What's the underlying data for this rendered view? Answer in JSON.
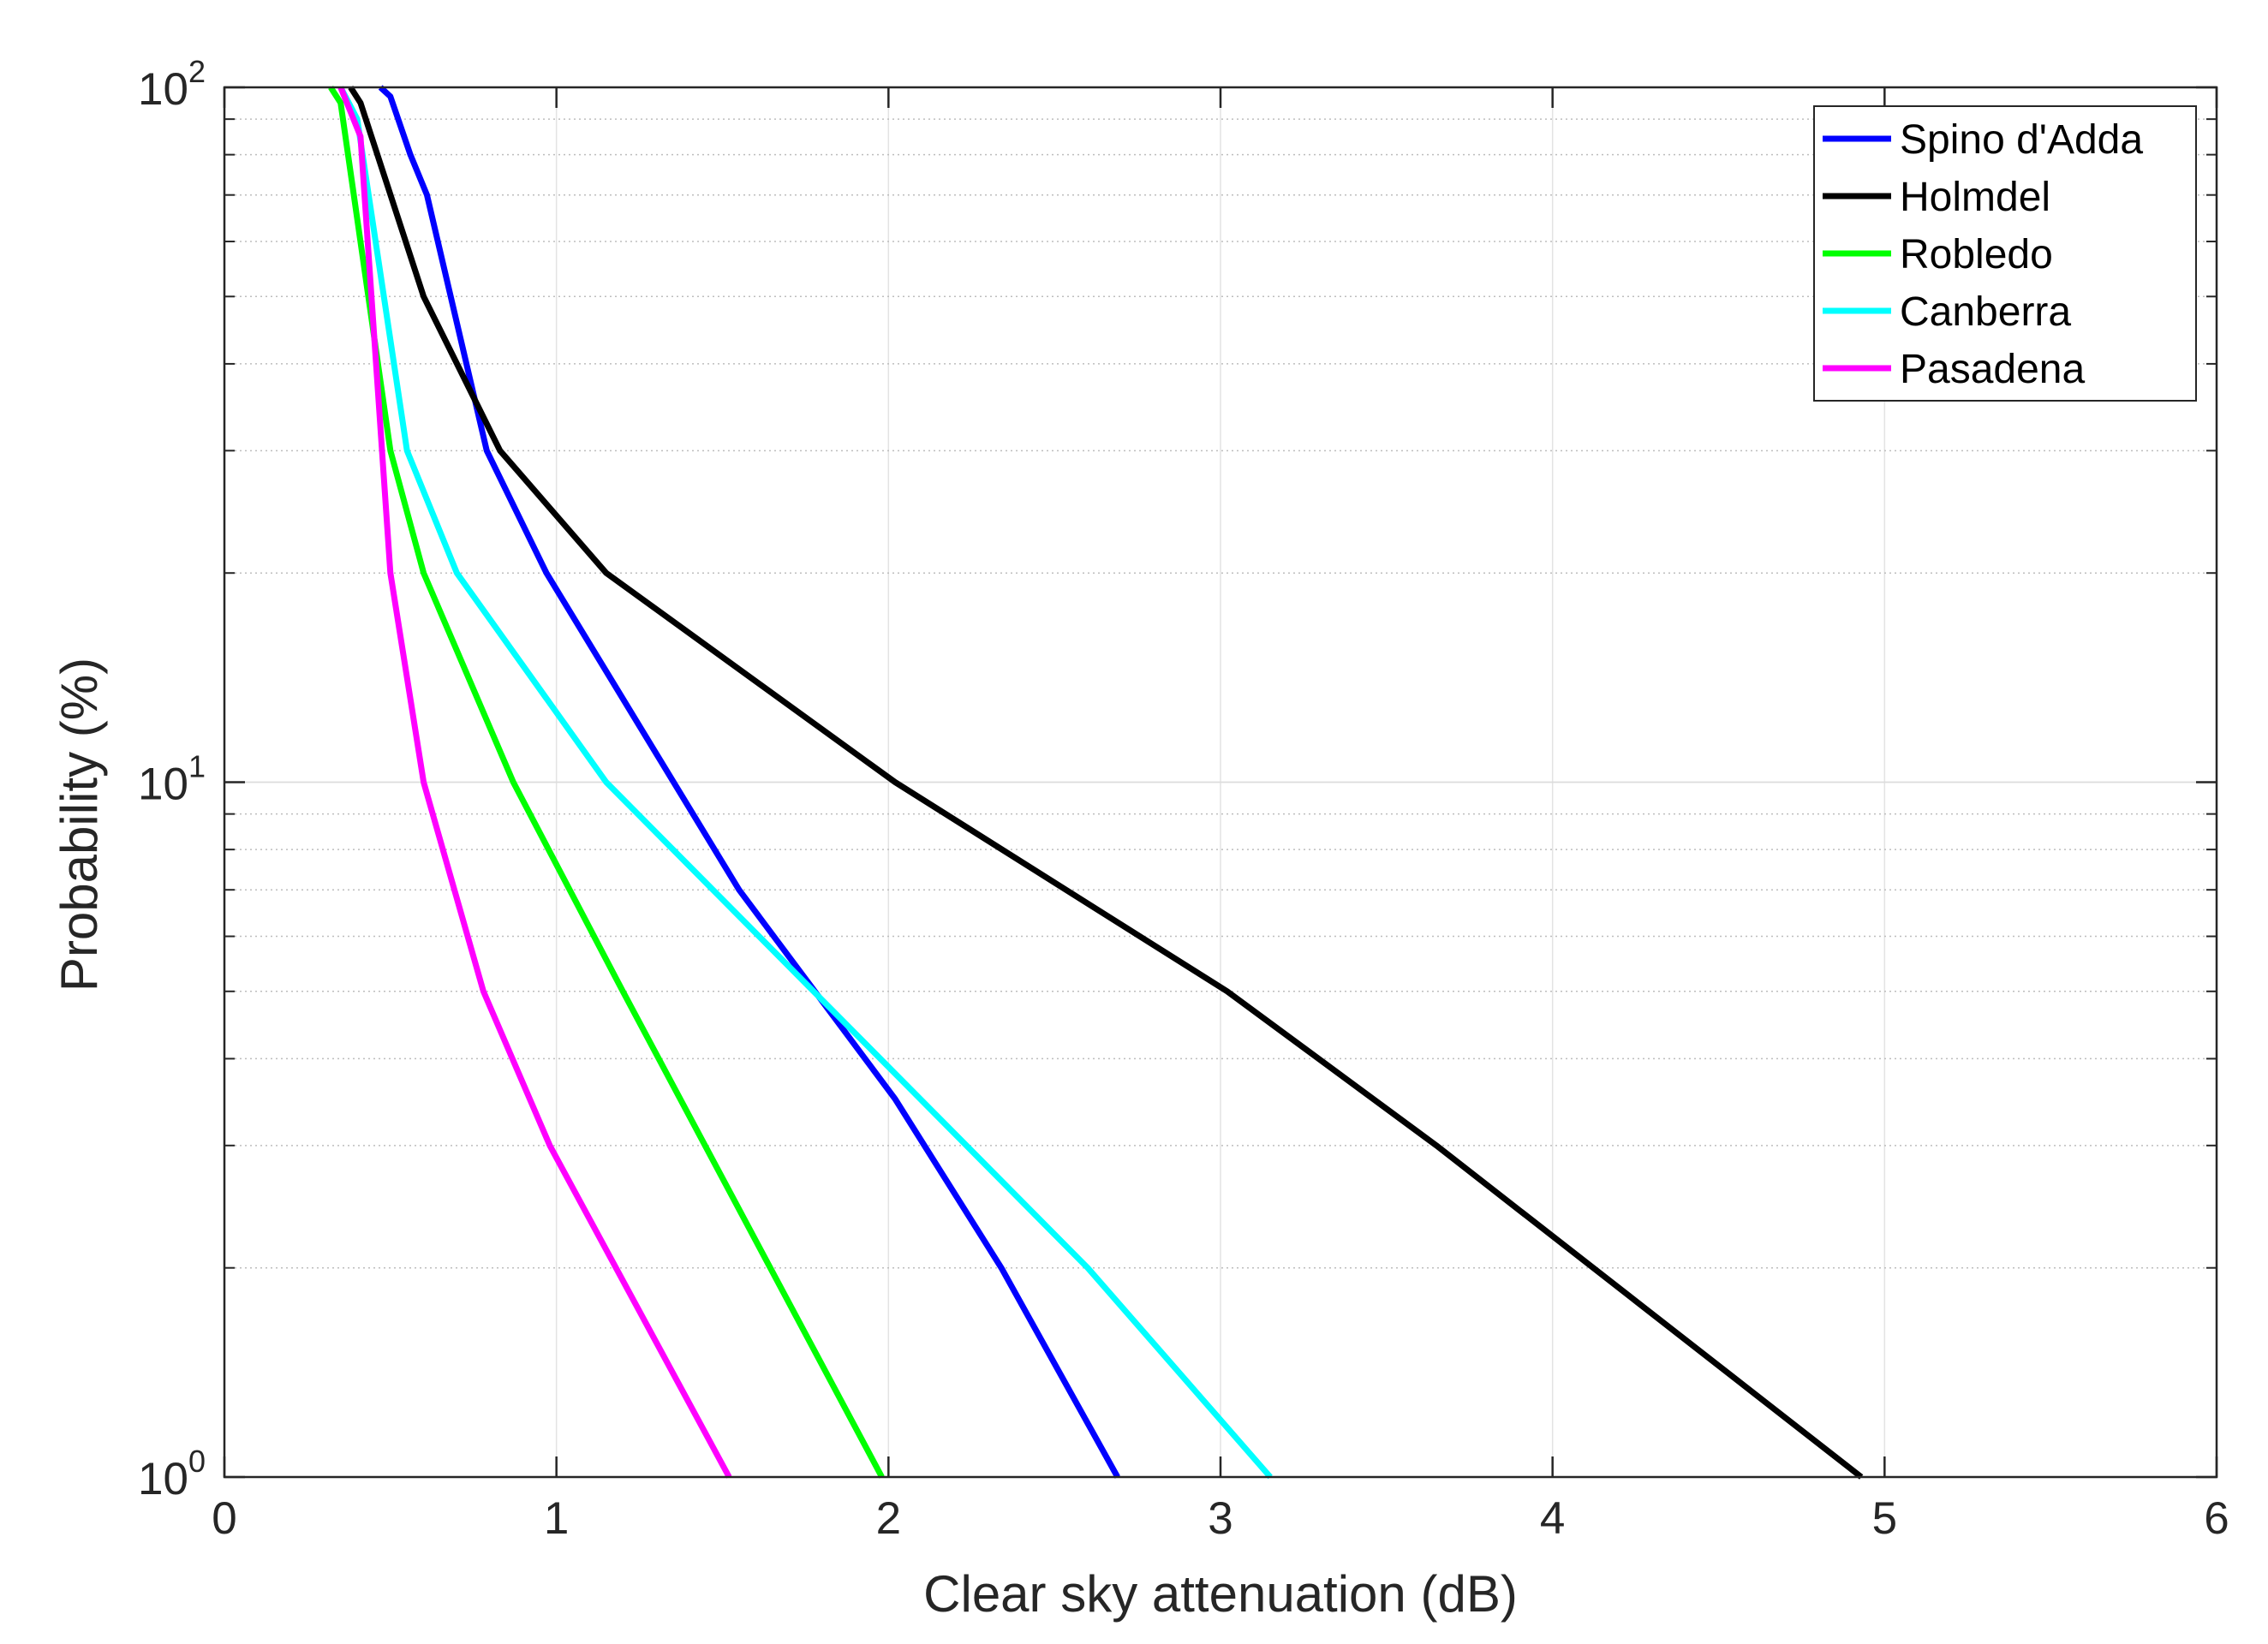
{
  "chart_data": {
    "type": "line",
    "title": "",
    "xlabel": "Clear sky attenuation (dB)",
    "ylabel": "Probability (%)",
    "xlim": [
      0,
      6
    ],
    "ylim": [
      1,
      100
    ],
    "yscale": "log",
    "grid": true,
    "legend_position": "top-right",
    "x_ticks": [
      0,
      1,
      2,
      3,
      4,
      5,
      6
    ],
    "x_tick_labels": [
      "0",
      "1",
      "2",
      "3",
      "4",
      "5",
      "6"
    ],
    "y_ticks": [
      1,
      10,
      100
    ],
    "y_tick_labels": [
      {
        "base": "10",
        "exp": "0"
      },
      {
        "base": "10",
        "exp": "1"
      },
      {
        "base": "10",
        "exp": "2"
      }
    ],
    "series": [
      {
        "name": "Spino d'Adda",
        "color": "#0000ff",
        "x": [
          0.47,
          0.5,
          0.56,
          0.61,
          0.79,
          0.97,
          1.55,
          2.02,
          2.34,
          2.69
        ],
        "y": [
          100,
          97,
          80,
          70,
          30,
          20,
          7,
          3.5,
          2,
          1
        ]
      },
      {
        "name": "Holmdel",
        "color": "#000000",
        "x": [
          0.38,
          0.41,
          0.6,
          0.83,
          1.15,
          2.02,
          3.02,
          3.65,
          4.93
        ],
        "y": [
          100,
          95,
          50,
          30,
          20,
          10,
          5,
          3,
          1
        ]
      },
      {
        "name": "Robledo",
        "color": "#00ff00",
        "x": [
          0.32,
          0.35,
          0.5,
          0.6,
          0.87,
          1.2,
          1.98
        ],
        "y": [
          100,
          95,
          30,
          20,
          10,
          5,
          1
        ]
      },
      {
        "name": "Canberra",
        "color": "#00ffff",
        "x": [
          0.35,
          0.4,
          0.55,
          0.7,
          1.15,
          2.6,
          3.15
        ],
        "y": [
          100,
          90,
          30,
          20,
          10,
          2,
          1
        ]
      },
      {
        "name": "Pasadena",
        "color": "#ff00ff",
        "x": [
          0.35,
          0.41,
          0.5,
          0.6,
          0.78,
          0.98,
          1.52
        ],
        "y": [
          100,
          85,
          20,
          10,
          5,
          3,
          1
        ]
      }
    ]
  }
}
